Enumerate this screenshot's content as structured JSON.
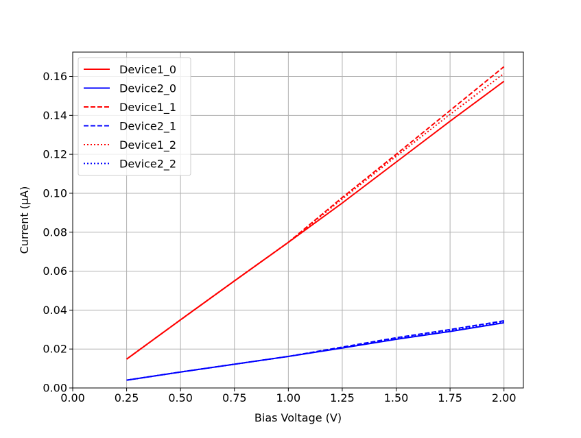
{
  "chart_data": {
    "type": "line",
    "title": "",
    "xlabel": "Bias Voltage (V)",
    "ylabel": "Current (µA)",
    "xlim": [
      0.0,
      2.09
    ],
    "ylim": [
      0.0,
      0.1725
    ],
    "x_ticks": [
      "0.00",
      "0.25",
      "0.50",
      "0.75",
      "1.00",
      "1.25",
      "1.50",
      "1.75",
      "2.00"
    ],
    "y_ticks": [
      "0.00",
      "0.02",
      "0.04",
      "0.06",
      "0.08",
      "0.10",
      "0.12",
      "0.14",
      "0.16"
    ],
    "grid": true,
    "legend_position": "top-left",
    "series": [
      {
        "name": "Device1_0",
        "color": "#ff0000",
        "line_style": "solid",
        "x": [
          0.25,
          0.5,
          0.75,
          1.0,
          1.25,
          1.5,
          1.75,
          2.0
        ],
        "y": [
          0.0148,
          0.035,
          0.055,
          0.0748,
          0.095,
          0.116,
          0.137,
          0.1575
        ]
      },
      {
        "name": "Device2_0",
        "color": "#0000ff",
        "line_style": "solid",
        "x": [
          0.25,
          0.5,
          0.75,
          1.0,
          1.25,
          1.5,
          1.75,
          2.0
        ],
        "y": [
          0.004,
          0.0082,
          0.0122,
          0.0162,
          0.0205,
          0.025,
          0.029,
          0.0335
        ]
      },
      {
        "name": "Device1_1",
        "color": "#ff0000",
        "line_style": "dashed",
        "x": [
          0.25,
          0.5,
          0.75,
          1.0,
          1.25,
          1.5,
          1.75,
          2.0
        ],
        "y": [
          0.0148,
          0.035,
          0.055,
          0.0748,
          0.0978,
          0.12,
          0.1425,
          0.165
        ]
      },
      {
        "name": "Device2_1",
        "color": "#0000ff",
        "line_style": "dashed",
        "x": [
          0.25,
          0.5,
          0.75,
          1.0,
          1.25,
          1.5,
          1.75,
          2.0
        ],
        "y": [
          0.004,
          0.0082,
          0.0122,
          0.0162,
          0.021,
          0.0258,
          0.03,
          0.0345
        ]
      },
      {
        "name": "Device1_2",
        "color": "#ff0000",
        "line_style": "dotted",
        "x": [
          0.25,
          0.5,
          0.75,
          1.0,
          1.25,
          1.5,
          1.75,
          2.0
        ],
        "y": [
          0.0148,
          0.035,
          0.055,
          0.0748,
          0.097,
          0.119,
          0.1405,
          0.1615
        ]
      },
      {
        "name": "Device2_2",
        "color": "#0000ff",
        "line_style": "dotted",
        "x": [
          0.25,
          0.5,
          0.75,
          1.0,
          1.25,
          1.5,
          1.75,
          2.0
        ],
        "y": [
          0.004,
          0.0082,
          0.0122,
          0.0162,
          0.0208,
          0.0254,
          0.0296,
          0.034
        ]
      }
    ]
  }
}
